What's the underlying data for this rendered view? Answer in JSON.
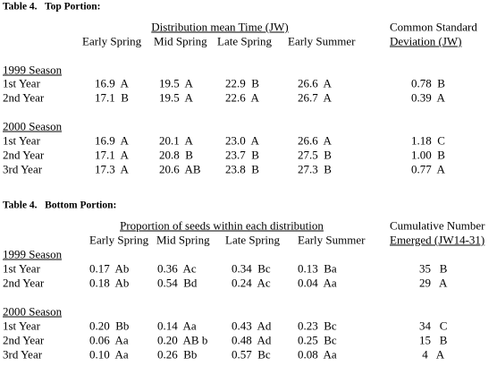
{
  "top": {
    "title": "Table 4.   Top Portion:",
    "group_header": "Distribution mean Time (JW)",
    "extra_header": [
      "Common Standard",
      "Deviation (JW)"
    ],
    "columns": [
      "Early Spring",
      "Mid Spring",
      "Late Spring",
      "Early Summer"
    ],
    "sections": [
      {
        "name": "1999 Season",
        "rows": [
          {
            "label": "1st Year",
            "cells": [
              "16.9  A",
              "19.5  A",
              "22.9  B",
              "26.6  A",
              "0.78  B"
            ]
          },
          {
            "label": "2nd Year",
            "cells": [
              "17.1  B",
              "19.5  A",
              "22.6  A",
              "26.7  A",
              "0.39  A"
            ]
          }
        ]
      },
      {
        "name": "2000 Season",
        "rows": [
          {
            "label": "1st Year",
            "cells": [
              "16.9  A",
              "20.1  A",
              "23.0  A",
              "26.6  A",
              "1.18  C"
            ]
          },
          {
            "label": "2nd Year",
            "cells": [
              "17.1  A",
              "20.8  B",
              "23.7  B",
              "27.5  B",
              "1.00  B"
            ]
          },
          {
            "label": "3rd Year",
            "cells": [
              "17.3  A",
              "20.6  AB",
              "23.8  B",
              "27.3  B",
              "0.77  A"
            ]
          }
        ]
      }
    ]
  },
  "bottom": {
    "title": "Table 4.   Bottom Portion:",
    "group_header": "Proportion of seeds within each distribution",
    "extra_header": [
      "Cumulative Number",
      "Emerged (JW14-31)"
    ],
    "columns": [
      "Early Spring",
      "Mid Spring",
      "Late Spring",
      "Early Summer"
    ],
    "sections": [
      {
        "name": "1999 Season",
        "rows": [
          {
            "label": "1st Year",
            "cells": [
              "0.17  Ab",
              "0.36  Ac",
              "0.34  Bc",
              "0.13  Ba",
              "35   B"
            ]
          },
          {
            "label": "2nd Year",
            "cells": [
              "0.18  Ab",
              "0.54  Bd",
              "0.24  Ac",
              "0.04  Aa",
              "29   A"
            ]
          }
        ]
      },
      {
        "name": "2000 Season",
        "rows": [
          {
            "label": "1st Year",
            "cells": [
              "0.20  Bb",
              "0.14  Aa",
              "0.43  Ad",
              "0.23  Bc",
              "34   C"
            ]
          },
          {
            "label": "2nd Year",
            "cells": [
              "0.06  Aa",
              "0.20  AB b",
              "0.48  Ad",
              "0.25  Bc",
              "15   B"
            ]
          },
          {
            "label": "3rd Year",
            "cells": [
              "0.10  Aa",
              "0.26  Bb",
              "0.57  Bc",
              "0.08  Aa",
              " 4   A"
            ]
          }
        ]
      }
    ]
  }
}
